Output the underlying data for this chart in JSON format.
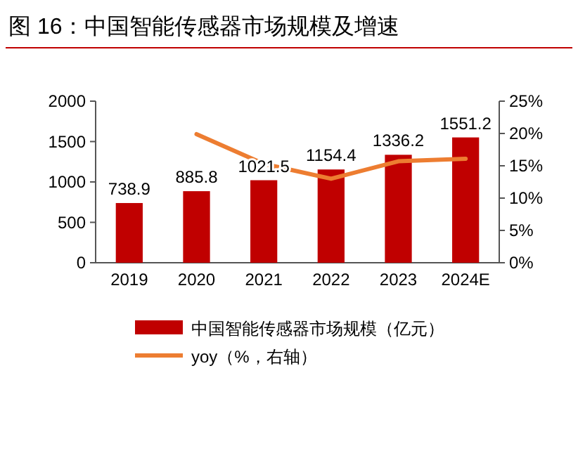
{
  "chart_data": {
    "type": "bar",
    "title": "图 16：中国智能传感器市场规模及增速",
    "categories": [
      "2019",
      "2020",
      "2021",
      "2022",
      "2023",
      "2024E"
    ],
    "series": [
      {
        "name": "中国智能传感器市场规模（亿元）",
        "color": "#c00000",
        "values": [
          738.9,
          885.8,
          1021.5,
          1154.4,
          1336.2,
          1551.2
        ],
        "value_labels": [
          "738.9",
          "885.8",
          "1021.5",
          "1154.4",
          "1336.2",
          "1551.2"
        ]
      },
      {
        "name": "yoy（%，右轴）",
        "type": "line",
        "axis": "y2",
        "color": "#ed7d31",
        "values": [
          null,
          19.9,
          15.3,
          13.0,
          15.7,
          16.1
        ]
      }
    ],
    "ylim": [
      0,
      2000
    ],
    "yticks": [
      0,
      500,
      1000,
      1500,
      2000
    ],
    "y2lim": [
      0,
      25
    ],
    "y2ticks": [
      {
        "value": 0,
        "label": "0%"
      },
      {
        "value": 5,
        "label": "5%"
      },
      {
        "value": 10,
        "label": "10%"
      },
      {
        "value": 15,
        "label": "15%"
      },
      {
        "value": 20,
        "label": "20%"
      },
      {
        "value": 25,
        "label": "25%"
      }
    ],
    "legend": "bottom",
    "marker": "none",
    "line_style": "solid",
    "grid": false
  }
}
